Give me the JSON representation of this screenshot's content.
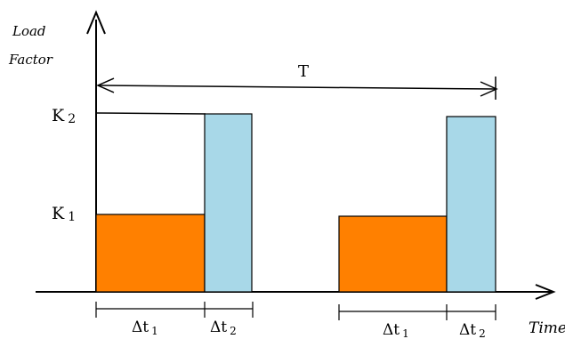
{
  "axes": {
    "y_label_line1": "Load",
    "y_label_line2": "Factor",
    "x_label": "Time"
  },
  "levels": {
    "k1_label": "K",
    "k1_sub": "1",
    "k2_label": "K",
    "k2_sub": "2"
  },
  "period": {
    "label": "T"
  },
  "intervals": [
    {
      "label": "Δt",
      "sub": "1"
    },
    {
      "label": "Δt",
      "sub": "2"
    },
    {
      "label": "Δt",
      "sub": "1"
    },
    {
      "label": "Δt",
      "sub": "2"
    }
  ],
  "colors": {
    "low_load": "#ff8000",
    "high_load": "#a8d8e8",
    "line": "#000000"
  }
}
